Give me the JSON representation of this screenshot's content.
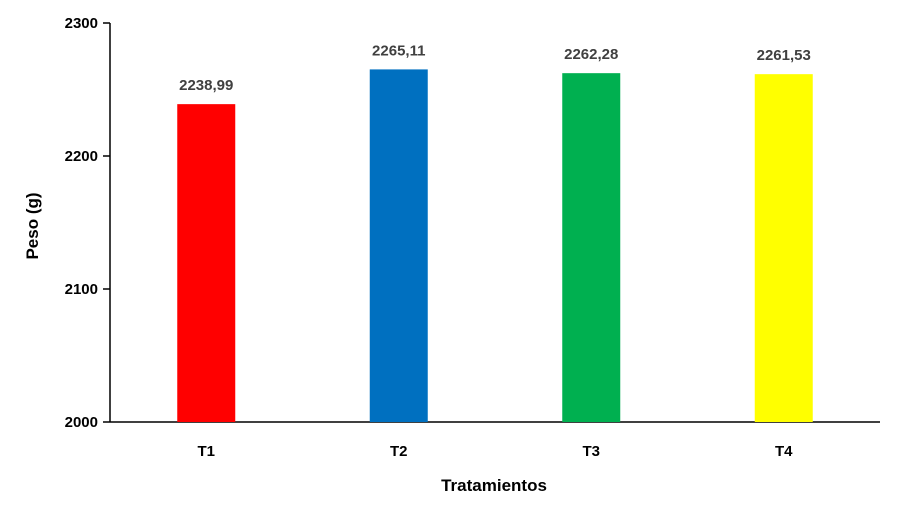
{
  "chart_data": {
    "type": "bar",
    "categories": [
      "T1",
      "T2",
      "T3",
      "T4"
    ],
    "values": [
      2238.99,
      2265.11,
      2262.28,
      2261.53
    ],
    "data_labels": [
      "2238,99",
      "2265,11",
      "2262,28",
      "2261,53"
    ],
    "colors": [
      "#ff0000",
      "#0070c0",
      "#00b050",
      "#ffff00"
    ],
    "title": "",
    "xlabel": "Tratamientos",
    "ylabel": "Peso (g)",
    "ylim": [
      2000,
      2300
    ],
    "yticks": [
      2000,
      2100,
      2200,
      2300
    ],
    "grid": false,
    "legend": "none"
  }
}
